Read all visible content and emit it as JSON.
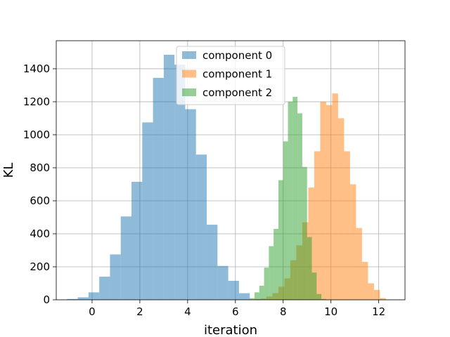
{
  "chart_data": {
    "type": "bar",
    "subtype": "histogram",
    "title": "",
    "xlabel": "iteration",
    "ylabel": "KL",
    "xlim": [
      -1.5,
      13.1
    ],
    "ylim": [
      0,
      1570
    ],
    "xticks": [
      0,
      2,
      4,
      6,
      8,
      10,
      12
    ],
    "yticks": [
      0,
      200,
      400,
      600,
      800,
      1000,
      1200,
      1400
    ],
    "grid": true,
    "legend_position": "top-center",
    "series": [
      {
        "name": "component 0",
        "color": "#1f77b4",
        "alpha": 0.5,
        "bin_edges": [
          -1.05,
          -0.6,
          -0.15,
          0.3,
          0.75,
          1.2,
          1.65,
          2.1,
          2.55,
          3.0,
          3.45,
          3.9,
          4.35,
          4.8,
          5.25,
          5.7,
          6.15,
          6.6
        ],
        "counts": [
          5,
          15,
          45,
          140,
          275,
          505,
          715,
          1075,
          1345,
          1485,
          1425,
          1155,
          880,
          455,
          205,
          115,
          40
        ]
      },
      {
        "name": "component 1",
        "color": "#ff7f0e",
        "alpha": 0.5,
        "bin_edges": [
          6.2,
          6.5,
          6.8,
          7.05,
          7.3,
          7.55,
          7.8,
          8.05,
          8.3,
          8.55,
          8.8,
          9.05,
          9.3,
          9.55,
          9.8,
          10.05,
          10.3,
          10.55,
          10.8,
          11.05,
          11.3,
          11.55,
          11.8,
          12.05,
          12.3
        ],
        "counts": [
          1,
          2,
          5,
          8,
          20,
          40,
          80,
          130,
          240,
          330,
          470,
          680,
          900,
          1200,
          1180,
          1250,
          1100,
          900,
          700,
          435,
          230,
          100,
          60,
          10
        ]
      },
      {
        "name": "component 2",
        "color": "#2ca02c",
        "alpha": 0.5,
        "bin_edges": [
          6.4,
          6.6,
          6.8,
          7.0,
          7.2,
          7.4,
          7.6,
          7.8,
          8.0,
          8.2,
          8.4,
          8.6,
          8.8,
          9.0,
          9.2,
          9.4,
          9.6,
          9.8
        ],
        "counts": [
          2,
          10,
          45,
          85,
          195,
          325,
          430,
          725,
          960,
          1200,
          1230,
          1130,
          805,
          380,
          165,
          35,
          5
        ]
      }
    ]
  }
}
